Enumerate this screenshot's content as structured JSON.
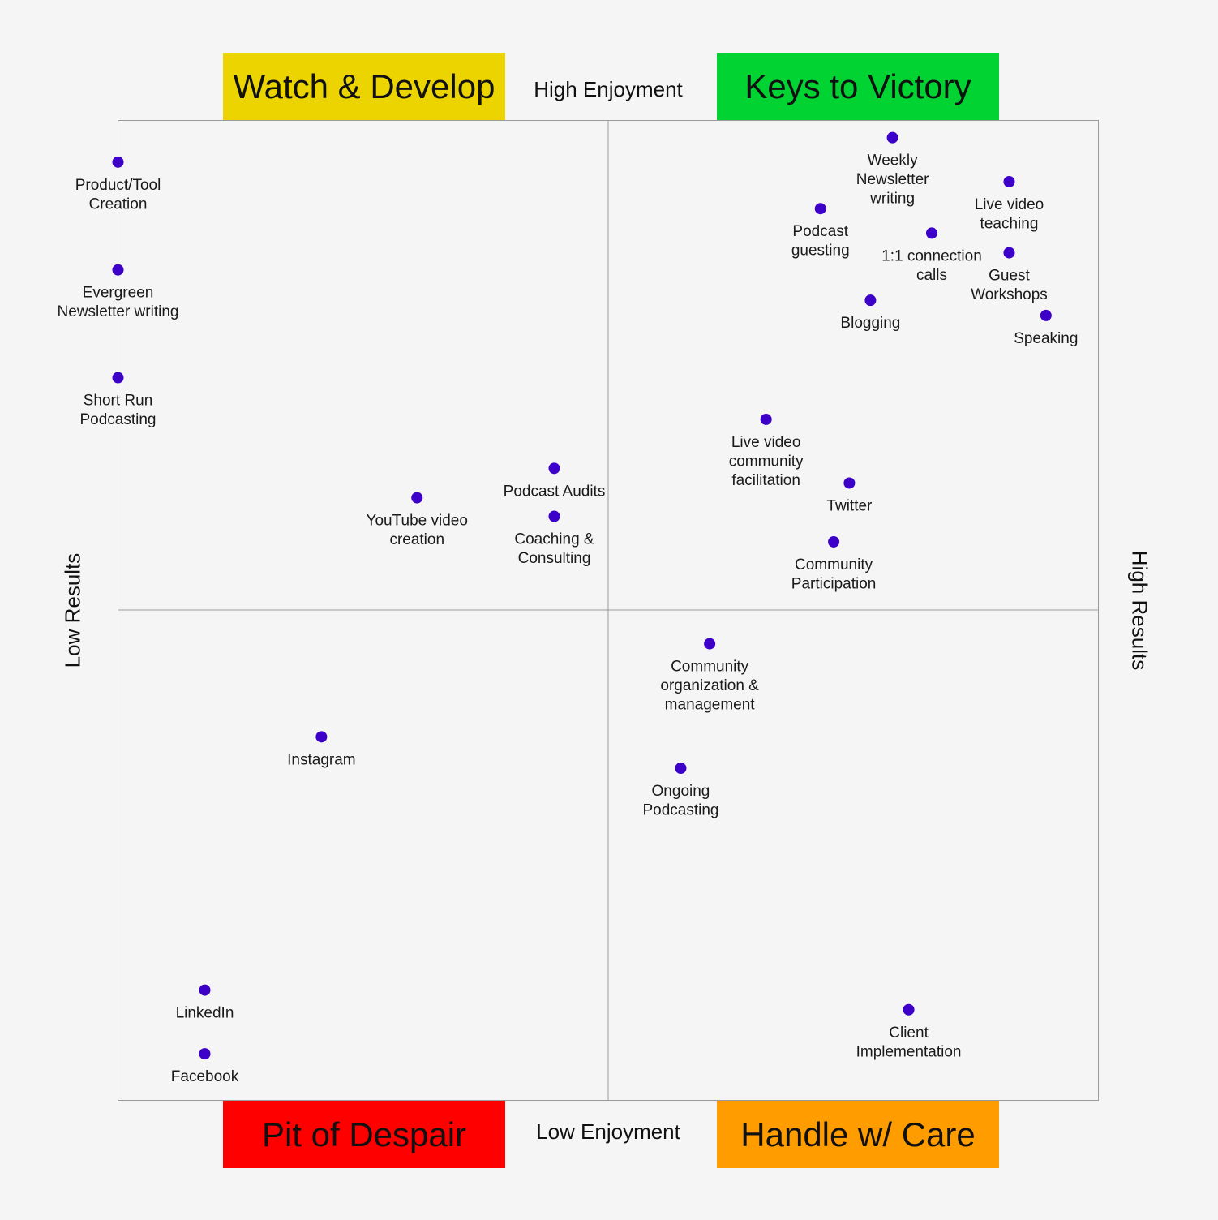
{
  "chart_data": {
    "type": "scatter",
    "title": "",
    "quadrants": {
      "top_left": {
        "label": "Watch & Develop",
        "color": "#ecd400"
      },
      "top_right": {
        "label": "Keys to Victory",
        "color": "#00d332"
      },
      "bottom_left": {
        "label": "Pit of Despair",
        "color": "#ff0000"
      },
      "bottom_right": {
        "label": "Handle w/ Care",
        "color": "#ff9c00"
      }
    },
    "axis_labels": {
      "top": "High Enjoyment",
      "bottom": "Low Enjoyment",
      "left": "Low Results",
      "right": "High Results"
    },
    "xlim": [
      -10,
      10
    ],
    "ylim": [
      -10,
      10
    ],
    "grid": false,
    "point_color": "#3c00c8",
    "points": [
      {
        "label": [
          "Product/Tool",
          "Creation"
        ],
        "x": -10.0,
        "y": 9.15
      },
      {
        "label": [
          "Evergreen",
          "Newsletter writing"
        ],
        "x": -10.0,
        "y": 6.95
      },
      {
        "label": [
          "Short Run",
          "Podcasting"
        ],
        "x": -10.0,
        "y": 4.75
      },
      {
        "label": [
          "YouTube video",
          "creation"
        ],
        "x": -3.9,
        "y": 2.3
      },
      {
        "label": [
          "Podcast Audits"
        ],
        "x": -1.1,
        "y": 2.9
      },
      {
        "label": [
          "Coaching &",
          "Consulting"
        ],
        "x": -1.1,
        "y": 1.92
      },
      {
        "label": [
          "Weekly",
          "Newsletter",
          "writing"
        ],
        "x": 5.8,
        "y": 9.65
      },
      {
        "label": [
          "Podcast",
          "guesting"
        ],
        "x": 4.33,
        "y": 8.2
      },
      {
        "label": [
          "1:1 connection",
          "calls"
        ],
        "x": 6.6,
        "y": 7.7
      },
      {
        "label": [
          "Live video",
          "teaching"
        ],
        "x": 8.18,
        "y": 8.75
      },
      {
        "label": [
          "Guest",
          "Workshops"
        ],
        "x": 8.18,
        "y": 7.3
      },
      {
        "label": [
          "Blogging"
        ],
        "x": 5.35,
        "y": 6.33
      },
      {
        "label": [
          "Speaking"
        ],
        "x": 8.93,
        "y": 6.02
      },
      {
        "label": [
          "Live video",
          "community",
          "facilitation"
        ],
        "x": 3.22,
        "y": 3.9
      },
      {
        "label": [
          "Twitter"
        ],
        "x": 4.92,
        "y": 2.6
      },
      {
        "label": [
          "Community",
          "Participation"
        ],
        "x": 4.6,
        "y": 1.4
      },
      {
        "label": [
          "Community",
          "organization &",
          "management"
        ],
        "x": 2.07,
        "y": -0.68
      },
      {
        "label": [
          "Instagram"
        ],
        "x": -5.85,
        "y": -2.58
      },
      {
        "label": [
          "Ongoing",
          "Podcasting"
        ],
        "x": 1.48,
        "y": -3.22
      },
      {
        "label": [
          "LinkedIn"
        ],
        "x": -8.23,
        "y": -7.75
      },
      {
        "label": [
          "Facebook"
        ],
        "x": -8.23,
        "y": -9.05
      },
      {
        "label": [
          "Client",
          "Implementation"
        ],
        "x": 6.13,
        "y": -8.15
      }
    ]
  }
}
